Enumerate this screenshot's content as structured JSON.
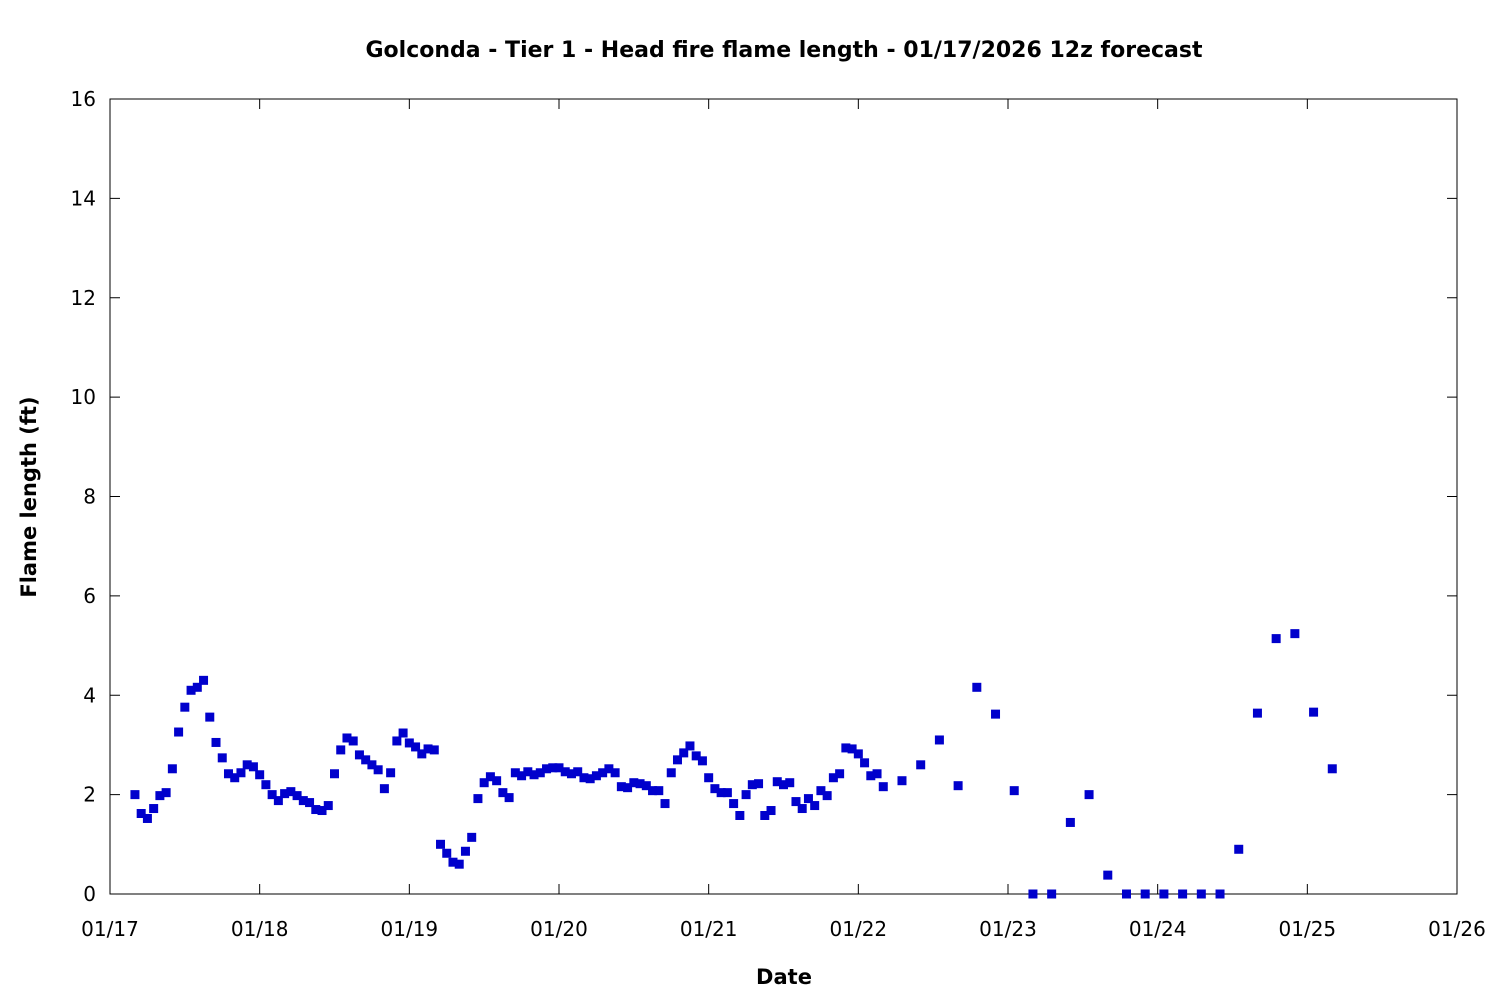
{
  "chart_data": {
    "type": "scatter",
    "title": "Golconda - Tier 1 - Head fire flame length - 01/17/2026 12z forecast",
    "xlabel": "Date",
    "ylabel": "Flame length (ft)",
    "x_ticks": [
      "01/17",
      "01/18",
      "01/19",
      "01/20",
      "01/21",
      "01/22",
      "01/23",
      "01/24",
      "01/25",
      "01/26"
    ],
    "y_ticks": [
      "0",
      "2",
      "4",
      "6",
      "8",
      "10",
      "12",
      "14",
      "16"
    ],
    "xlim": [
      "2026-01-17T00:00",
      "2026-01-26T00:00"
    ],
    "ylim": [
      0,
      16
    ],
    "grid": false,
    "marker_color": "#0000cc",
    "series": [
      {
        "points": [
          [
            "2026-01-17T04:00",
            2.0
          ],
          [
            "2026-01-17T05:00",
            1.62
          ],
          [
            "2026-01-17T06:00",
            1.52
          ],
          [
            "2026-01-17T07:00",
            1.72
          ],
          [
            "2026-01-17T08:00",
            1.98
          ],
          [
            "2026-01-17T09:00",
            2.04
          ],
          [
            "2026-01-17T10:00",
            2.52
          ],
          [
            "2026-01-17T11:00",
            3.26
          ],
          [
            "2026-01-17T12:00",
            3.76
          ],
          [
            "2026-01-17T13:00",
            4.1
          ],
          [
            "2026-01-17T14:00",
            4.16
          ],
          [
            "2026-01-17T15:00",
            4.3
          ],
          [
            "2026-01-17T16:00",
            3.56
          ],
          [
            "2026-01-17T17:00",
            3.05
          ],
          [
            "2026-01-17T18:00",
            2.74
          ],
          [
            "2026-01-17T19:00",
            2.42
          ],
          [
            "2026-01-17T20:00",
            2.34
          ],
          [
            "2026-01-17T21:00",
            2.44
          ],
          [
            "2026-01-17T22:00",
            2.6
          ],
          [
            "2026-01-17T23:00",
            2.56
          ],
          [
            "2026-01-18T00:00",
            2.4
          ],
          [
            "2026-01-18T01:00",
            2.2
          ],
          [
            "2026-01-18T02:00",
            2.0
          ],
          [
            "2026-01-18T03:00",
            1.88
          ],
          [
            "2026-01-18T04:00",
            2.02
          ],
          [
            "2026-01-18T05:00",
            2.06
          ],
          [
            "2026-01-18T06:00",
            1.98
          ],
          [
            "2026-01-18T07:00",
            1.88
          ],
          [
            "2026-01-18T08:00",
            1.84
          ],
          [
            "2026-01-18T09:00",
            1.7
          ],
          [
            "2026-01-18T10:00",
            1.68
          ],
          [
            "2026-01-18T11:00",
            1.78
          ],
          [
            "2026-01-18T12:00",
            2.42
          ],
          [
            "2026-01-18T13:00",
            2.9
          ],
          [
            "2026-01-18T14:00",
            3.14
          ],
          [
            "2026-01-18T15:00",
            3.08
          ],
          [
            "2026-01-18T16:00",
            2.8
          ],
          [
            "2026-01-18T17:00",
            2.7
          ],
          [
            "2026-01-18T18:00",
            2.6
          ],
          [
            "2026-01-18T19:00",
            2.5
          ],
          [
            "2026-01-18T20:00",
            2.12
          ],
          [
            "2026-01-18T21:00",
            2.44
          ],
          [
            "2026-01-18T22:00",
            3.08
          ],
          [
            "2026-01-18T23:00",
            3.24
          ],
          [
            "2026-01-19T00:00",
            3.04
          ],
          [
            "2026-01-19T01:00",
            2.96
          ],
          [
            "2026-01-19T02:00",
            2.82
          ],
          [
            "2026-01-19T03:00",
            2.92
          ],
          [
            "2026-01-19T04:00",
            2.9
          ],
          [
            "2026-01-19T05:00",
            1.0
          ],
          [
            "2026-01-19T06:00",
            0.82
          ],
          [
            "2026-01-19T07:00",
            0.64
          ],
          [
            "2026-01-19T08:00",
            0.6
          ],
          [
            "2026-01-19T09:00",
            0.86
          ],
          [
            "2026-01-19T10:00",
            1.14
          ],
          [
            "2026-01-19T11:00",
            1.92
          ],
          [
            "2026-01-19T12:00",
            2.24
          ],
          [
            "2026-01-19T13:00",
            2.36
          ],
          [
            "2026-01-19T14:00",
            2.28
          ],
          [
            "2026-01-19T15:00",
            2.04
          ],
          [
            "2026-01-19T16:00",
            1.94
          ],
          [
            "2026-01-19T17:00",
            2.44
          ],
          [
            "2026-01-19T18:00",
            2.38
          ],
          [
            "2026-01-19T19:00",
            2.46
          ],
          [
            "2026-01-19T20:00",
            2.4
          ],
          [
            "2026-01-19T21:00",
            2.44
          ],
          [
            "2026-01-19T22:00",
            2.52
          ],
          [
            "2026-01-19T23:00",
            2.54
          ],
          [
            "2026-01-20T00:00",
            2.54
          ],
          [
            "2026-01-20T01:00",
            2.46
          ],
          [
            "2026-01-20T02:00",
            2.42
          ],
          [
            "2026-01-20T03:00",
            2.46
          ],
          [
            "2026-01-20T04:00",
            2.34
          ],
          [
            "2026-01-20T05:00",
            2.32
          ],
          [
            "2026-01-20T06:00",
            2.38
          ],
          [
            "2026-01-20T07:00",
            2.44
          ],
          [
            "2026-01-20T08:00",
            2.52
          ],
          [
            "2026-01-20T09:00",
            2.44
          ],
          [
            "2026-01-20T10:00",
            2.16
          ],
          [
            "2026-01-20T11:00",
            2.14
          ],
          [
            "2026-01-20T12:00",
            2.24
          ],
          [
            "2026-01-20T13:00",
            2.22
          ],
          [
            "2026-01-20T14:00",
            2.18
          ],
          [
            "2026-01-20T15:00",
            2.08
          ],
          [
            "2026-01-20T16:00",
            2.08
          ],
          [
            "2026-01-20T17:00",
            1.82
          ],
          [
            "2026-01-20T18:00",
            2.44
          ],
          [
            "2026-01-20T19:00",
            2.7
          ],
          [
            "2026-01-20T20:00",
            2.84
          ],
          [
            "2026-01-20T21:00",
            2.98
          ],
          [
            "2026-01-20T22:00",
            2.78
          ],
          [
            "2026-01-20T23:00",
            2.68
          ],
          [
            "2026-01-21T00:00",
            2.34
          ],
          [
            "2026-01-21T01:00",
            2.12
          ],
          [
            "2026-01-21T02:00",
            2.04
          ],
          [
            "2026-01-21T03:00",
            2.04
          ],
          [
            "2026-01-21T04:00",
            1.82
          ],
          [
            "2026-01-21T05:00",
            1.58
          ],
          [
            "2026-01-21T06:00",
            2.0
          ],
          [
            "2026-01-21T07:00",
            2.2
          ],
          [
            "2026-01-21T08:00",
            2.22
          ],
          [
            "2026-01-21T09:00",
            1.58
          ],
          [
            "2026-01-21T10:00",
            1.68
          ],
          [
            "2026-01-21T11:00",
            2.26
          ],
          [
            "2026-01-21T12:00",
            2.2
          ],
          [
            "2026-01-21T13:00",
            2.24
          ],
          [
            "2026-01-21T14:00",
            1.86
          ],
          [
            "2026-01-21T15:00",
            1.72
          ],
          [
            "2026-01-21T16:00",
            1.92
          ],
          [
            "2026-01-21T17:00",
            1.78
          ],
          [
            "2026-01-21T18:00",
            2.08
          ],
          [
            "2026-01-21T19:00",
            1.98
          ],
          [
            "2026-01-21T20:00",
            2.34
          ],
          [
            "2026-01-21T21:00",
            2.42
          ],
          [
            "2026-01-21T22:00",
            2.94
          ],
          [
            "2026-01-21T23:00",
            2.92
          ],
          [
            "2026-01-22T00:00",
            2.82
          ],
          [
            "2026-01-22T01:00",
            2.64
          ],
          [
            "2026-01-22T02:00",
            2.38
          ],
          [
            "2026-01-22T03:00",
            2.42
          ],
          [
            "2026-01-22T04:00",
            2.16
          ],
          [
            "2026-01-22T07:00",
            2.28
          ],
          [
            "2026-01-22T10:00",
            2.6
          ],
          [
            "2026-01-22T13:00",
            3.1
          ],
          [
            "2026-01-22T16:00",
            2.18
          ],
          [
            "2026-01-22T19:00",
            4.16
          ],
          [
            "2026-01-22T22:00",
            3.62
          ],
          [
            "2026-01-23T01:00",
            2.08
          ],
          [
            "2026-01-23T04:00",
            0.0
          ],
          [
            "2026-01-23T07:00",
            0.0
          ],
          [
            "2026-01-23T10:00",
            1.44
          ],
          [
            "2026-01-23T13:00",
            2.0
          ],
          [
            "2026-01-23T16:00",
            0.38
          ],
          [
            "2026-01-23T19:00",
            0.0
          ],
          [
            "2026-01-23T22:00",
            0.0
          ],
          [
            "2026-01-24T01:00",
            0.0
          ],
          [
            "2026-01-24T04:00",
            0.0
          ],
          [
            "2026-01-24T07:00",
            0.0
          ],
          [
            "2026-01-24T10:00",
            0.0
          ],
          [
            "2026-01-24T13:00",
            0.9
          ],
          [
            "2026-01-24T16:00",
            3.64
          ],
          [
            "2026-01-24T19:00",
            5.14
          ],
          [
            "2026-01-24T22:00",
            5.24
          ],
          [
            "2026-01-25T01:00",
            3.66
          ],
          [
            "2026-01-25T04:00",
            2.52
          ]
        ]
      }
    ]
  }
}
